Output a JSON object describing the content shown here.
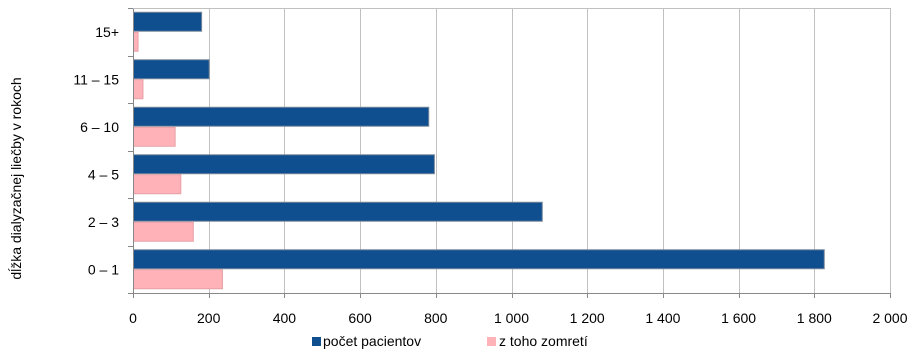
{
  "chart_data": {
    "type": "bar",
    "orientation": "horizontal",
    "title": "",
    "xlabel": "",
    "ylabel": "dĺžka dialyzačnej liečby v rokoch",
    "categories": [
      "0 – 1",
      "2 – 3",
      "4 – 5",
      "6 – 10",
      "11 – 15",
      "15+"
    ],
    "series": [
      {
        "name": "počet pacientov",
        "color": "#0f4e8f",
        "values": [
          1825,
          1080,
          795,
          780,
          200,
          180
        ]
      },
      {
        "name": "z toho zomretí",
        "color": "#ffb2b8",
        "values": [
          235,
          158,
          125,
          110,
          25,
          12
        ]
      }
    ],
    "xlim": [
      0,
      2000
    ],
    "xticks": [
      0,
      200,
      400,
      600,
      800,
      1000,
      1200,
      1400,
      1600,
      1800,
      2000
    ],
    "xtick_labels": [
      "0",
      "200",
      "400",
      "600",
      "800",
      "1 000",
      "1 200",
      "1 400",
      "1 600",
      "1 800",
      "2 000"
    ],
    "grid": "vertical",
    "legend_position": "bottom-center"
  }
}
